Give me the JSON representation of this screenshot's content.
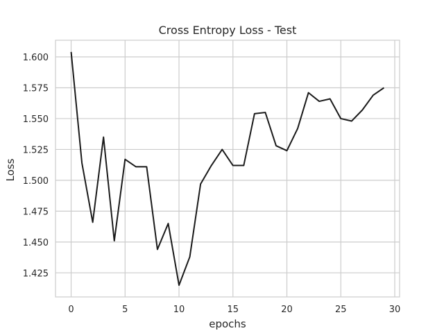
{
  "chart_data": {
    "type": "line",
    "title": "Cross Entropy Loss - Test",
    "xlabel": "epochs",
    "ylabel": "Loss",
    "xlim": [
      -1.45,
      30.45
    ],
    "ylim": [
      1.4055,
      1.6135
    ],
    "xticks": [
      0,
      5,
      10,
      15,
      20,
      25,
      30
    ],
    "yticks": [
      1.425,
      1.45,
      1.475,
      1.5,
      1.525,
      1.55,
      1.575,
      1.6
    ],
    "ytick_labels": [
      "1.425",
      "1.450",
      "1.475",
      "1.500",
      "1.525",
      "1.550",
      "1.575",
      "1.600"
    ],
    "grid": true,
    "series": [
      {
        "color": "#1a1a1a",
        "x": [
          0,
          1,
          2,
          3,
          4,
          5,
          6,
          7,
          8,
          9,
          10,
          11,
          12,
          13,
          14,
          15,
          16,
          17,
          18,
          19,
          20,
          21,
          22,
          23,
          24,
          25,
          26,
          27,
          28,
          29
        ],
        "values": [
          1.604,
          1.514,
          1.466,
          1.535,
          1.451,
          1.517,
          1.511,
          1.511,
          1.444,
          1.465,
          1.415,
          1.438,
          1.497,
          1.512,
          1.525,
          1.512,
          1.512,
          1.554,
          1.555,
          1.528,
          1.524,
          1.542,
          1.571,
          1.564,
          1.566,
          1.55,
          1.548,
          1.557,
          1.569,
          1.575
        ]
      }
    ]
  }
}
